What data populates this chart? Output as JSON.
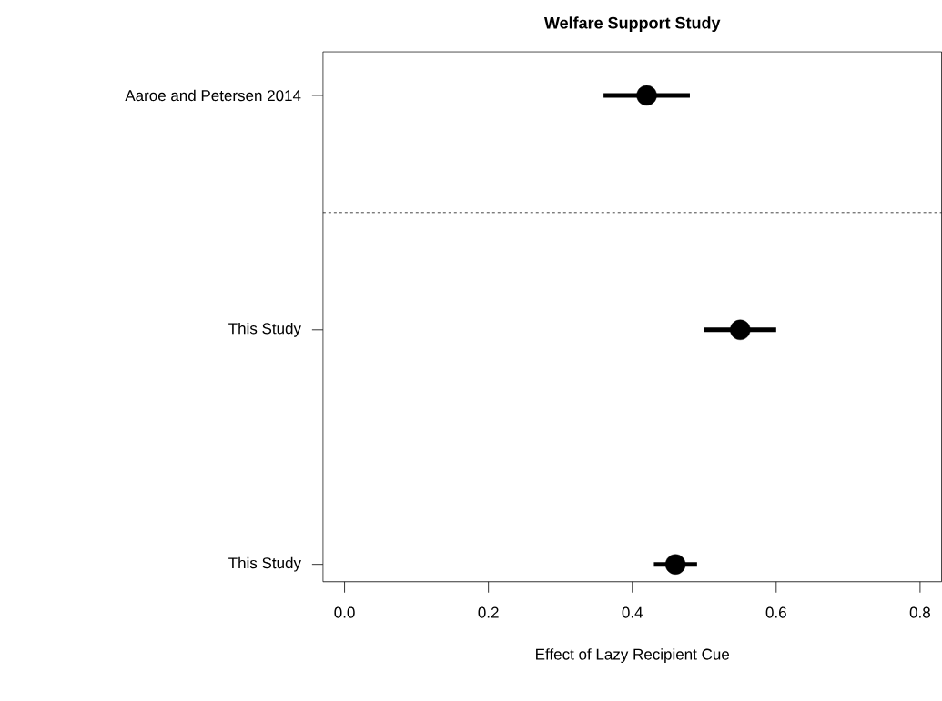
{
  "chart_data": {
    "type": "scatter",
    "title": "Welfare Support Study",
    "xlabel": "Effect of Lazy Recipient Cue",
    "orientation": "horizontal",
    "categories": [
      "Aaroe and Petersen 2014",
      "This Study",
      "This Study"
    ],
    "values": [
      0.42,
      0.55,
      0.46
    ],
    "errors": [
      [
        0.36,
        0.48
      ],
      [
        0.5,
        0.6
      ],
      [
        0.43,
        0.49
      ]
    ],
    "color": "#000000",
    "marker": "circle",
    "line_style": "solid",
    "xlim": [
      -0.03,
      0.83
    ],
    "xticks": [
      {
        "value": 0,
        "label": "0.0"
      },
      {
        "value": 0.2,
        "label": "0.2"
      },
      {
        "value": 0.4,
        "label": "0.4"
      },
      {
        "value": 0.6,
        "label": "0.6"
      },
      {
        "value": 0.8,
        "label": "0.8"
      }
    ]
  }
}
